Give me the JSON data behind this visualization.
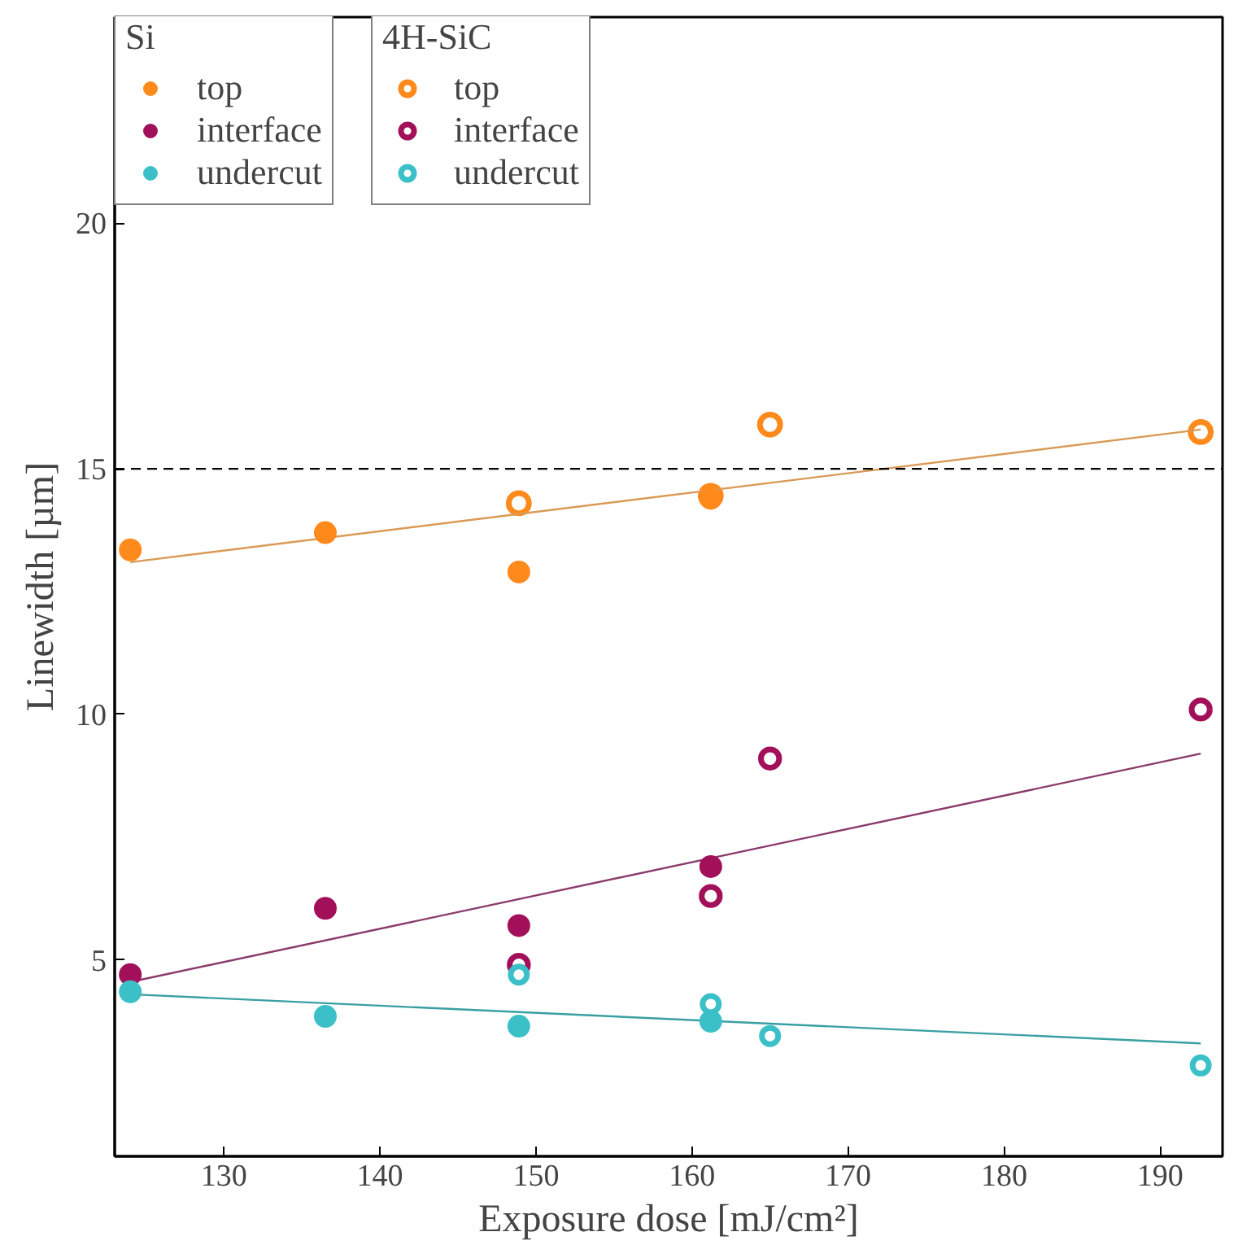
{
  "chart_data": {
    "type": "scatter",
    "xlabel": "Exposure dose [mJ/cm²]",
    "ylabel": "Linewidth [µm]",
    "xlim": [
      123,
      194
    ],
    "ylim": [
      1,
      24.2
    ],
    "xticks": [
      130,
      140,
      150,
      160,
      170,
      180,
      190
    ],
    "yticks": [
      5,
      10,
      15,
      20
    ],
    "grid": false,
    "legend": "top left",
    "marker": "circle",
    "annotations": [
      "Si",
      "4H-SiC"
    ],
    "ref_lines": [
      {
        "axis": "y",
        "value": 15,
        "color": "#000000",
        "line_style": "dashed"
      }
    ],
    "series": [
      {
        "name": "top",
        "color": "#ff8a1c",
        "x": [
          124,
          136.5,
          148.9,
          161.2
        ],
        "values": [
          13.35,
          13.7,
          12.9,
          14.4
        ]
      },
      {
        "name": "interface",
        "color": "#a3105a",
        "x": [
          124,
          136.5,
          148.9,
          161.2
        ],
        "values": [
          4.7,
          6.05,
          5.7,
          6.9
        ]
      },
      {
        "name": "undercut",
        "color": "#3cc0c8",
        "x": [
          124,
          136.5,
          148.9,
          161.2
        ],
        "values": [
          4.35,
          3.85,
          3.65,
          3.75
        ]
      },
      {
        "name": "top",
        "color": "#ff8a1c",
        "x": [
          148.9,
          161.2,
          165,
          192.6
        ],
        "values": [
          14.3,
          14.45,
          15.9,
          15.75
        ]
      },
      {
        "name": "interface",
        "color": "#a3105a",
        "x": [
          148.9,
          161.2,
          165,
          192.6
        ],
        "values": [
          4.9,
          6.3,
          9.1,
          10.1
        ]
      },
      {
        "name": "undercut",
        "color": "#3cc0c8",
        "x": [
          148.9,
          161.2,
          165,
          192.6
        ],
        "values": [
          4.7,
          4.1,
          3.45,
          2.85
        ]
      },
      {
        "type": "line",
        "color": "#d99a55",
        "marker": "none",
        "x": [
          124,
          192.6
        ],
        "values": [
          13.1,
          15.8
        ]
      },
      {
        "type": "line",
        "color": "#8a3a6a",
        "marker": "none",
        "x": [
          124,
          192.6
        ],
        "values": [
          4.55,
          9.2
        ]
      },
      {
        "type": "line",
        "color": "#3a9fa3",
        "marker": "none",
        "x": [
          124,
          192.6
        ],
        "values": [
          4.3,
          3.3
        ]
      }
    ]
  }
}
